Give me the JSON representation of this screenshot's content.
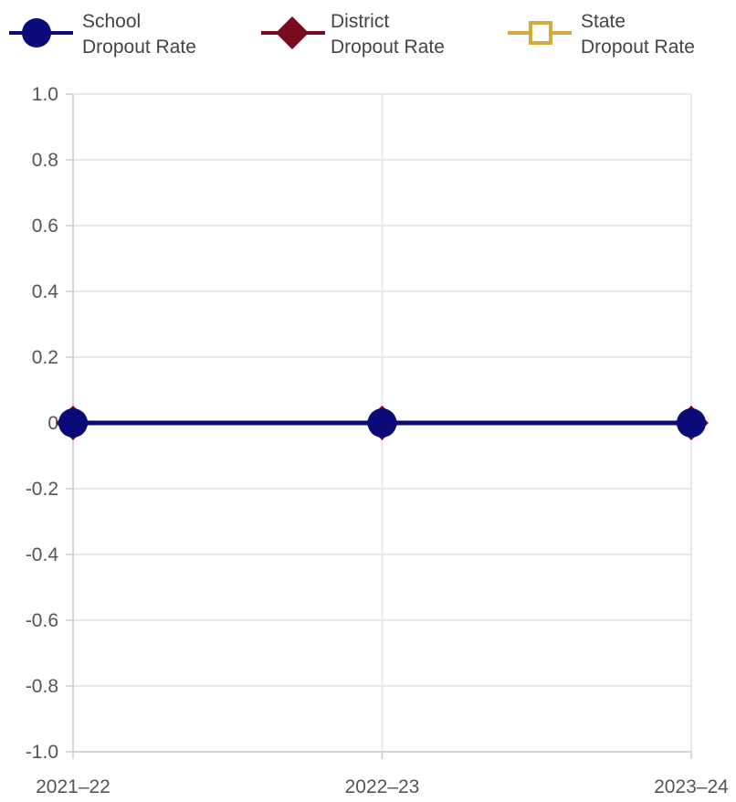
{
  "legend": [
    {
      "line1": "School",
      "line2": "Dropout Rate",
      "color": "#0a0a78",
      "marker": "circle-icon"
    },
    {
      "line1": "District",
      "line2": "Dropout Rate",
      "color": "#7a0a1e",
      "marker": "diamond-icon"
    },
    {
      "line1": "State",
      "line2": "Dropout Rate",
      "color": "#d4aa3c",
      "marker": "square-outline-icon"
    }
  ],
  "chart_data": {
    "type": "line",
    "categories": [
      "2021–22",
      "2022–23",
      "2023–24"
    ],
    "series": [
      {
        "name": "School Dropout Rate",
        "values": [
          0,
          0,
          0
        ],
        "color": "#0a0a78",
        "marker": "circle"
      },
      {
        "name": "District Dropout Rate",
        "values": [
          0,
          0,
          0
        ],
        "color": "#7a0a1e",
        "marker": "diamond"
      },
      {
        "name": "State Dropout Rate",
        "values": [
          null,
          null,
          null
        ],
        "color": "#d4aa3c",
        "marker": "square"
      }
    ],
    "ylim": [
      -1.0,
      1.0
    ],
    "yticks": [
      "1.0",
      "0.8",
      "0.6",
      "0.4",
      "0.2",
      "0",
      "-0.2",
      "-0.4",
      "-0.6",
      "-0.8",
      "-1.0"
    ],
    "grid": true,
    "legend_position": "top"
  }
}
